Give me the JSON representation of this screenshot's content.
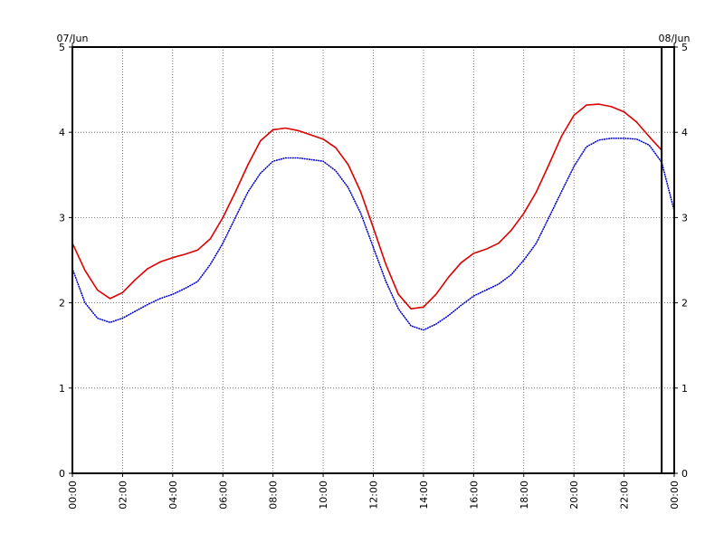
{
  "chart_data": {
    "type": "line",
    "x_unit": "time (HH:MM)",
    "xlim": [
      "00:00",
      "24:00"
    ],
    "ylim": [
      0,
      5
    ],
    "grid": true,
    "date_labels": {
      "start": "07/Jun",
      "end": "08/Jun"
    },
    "x_tick_labels": [
      "00:00",
      "02:00",
      "04:00",
      "06:00",
      "08:00",
      "10:00",
      "12:00",
      "14:00",
      "16:00",
      "18:00",
      "20:00",
      "22:00",
      "00:00"
    ],
    "y_tick_labels": [
      "0",
      "1",
      "2",
      "3",
      "4",
      "5"
    ],
    "marker_time": "23:30",
    "series": [
      {
        "color": "#dd0000",
        "style": "solid",
        "x": [
          "00:00",
          "00:30",
          "01:00",
          "01:30",
          "02:00",
          "02:30",
          "03:00",
          "03:30",
          "04:00",
          "04:30",
          "05:00",
          "05:30",
          "06:00",
          "06:30",
          "07:00",
          "07:30",
          "08:00",
          "08:30",
          "09:00",
          "09:30",
          "10:00",
          "10:30",
          "11:00",
          "11:30",
          "12:00",
          "12:30",
          "13:00",
          "13:30",
          "14:00",
          "14:30",
          "15:00",
          "15:30",
          "16:00",
          "16:30",
          "17:00",
          "17:30",
          "18:00",
          "18:30",
          "19:00",
          "19:30",
          "20:00",
          "20:30",
          "21:00",
          "21:30",
          "22:00",
          "22:30",
          "23:00",
          "23:30"
        ],
        "y": [
          2.7,
          2.38,
          2.15,
          2.05,
          2.12,
          2.27,
          2.4,
          2.48,
          2.53,
          2.57,
          2.62,
          2.75,
          3.0,
          3.3,
          3.62,
          3.9,
          4.03,
          4.05,
          4.02,
          3.97,
          3.92,
          3.82,
          3.62,
          3.3,
          2.88,
          2.45,
          2.1,
          1.93,
          1.95,
          2.1,
          2.3,
          2.47,
          2.58,
          2.63,
          2.7,
          2.85,
          3.05,
          3.3,
          3.62,
          3.95,
          4.2,
          4.32,
          4.33,
          4.3,
          4.24,
          4.12,
          3.95,
          3.79
        ]
      },
      {
        "color": "#0000cc",
        "style": "dotted",
        "x": [
          "00:00",
          "00:30",
          "01:00",
          "01:30",
          "02:00",
          "02:30",
          "03:00",
          "03:30",
          "04:00",
          "04:30",
          "05:00",
          "05:30",
          "06:00",
          "06:30",
          "07:00",
          "07:30",
          "08:00",
          "08:30",
          "09:00",
          "09:30",
          "10:00",
          "10:30",
          "11:00",
          "11:30",
          "12:00",
          "12:30",
          "13:00",
          "13:30",
          "14:00",
          "14:30",
          "15:00",
          "15:30",
          "16:00",
          "16:30",
          "17:00",
          "17:30",
          "18:00",
          "18:30",
          "19:00",
          "19:30",
          "20:00",
          "20:30",
          "21:00",
          "21:30",
          "22:00",
          "22:30",
          "23:00",
          "23:30",
          "24:00"
        ],
        "y": [
          2.4,
          2.0,
          1.82,
          1.77,
          1.82,
          1.9,
          1.98,
          2.05,
          2.1,
          2.17,
          2.25,
          2.45,
          2.7,
          3.0,
          3.3,
          3.52,
          3.66,
          3.7,
          3.7,
          3.68,
          3.66,
          3.55,
          3.35,
          3.05,
          2.65,
          2.25,
          1.93,
          1.73,
          1.68,
          1.75,
          1.85,
          1.97,
          2.08,
          2.15,
          2.22,
          2.33,
          2.5,
          2.7,
          3.0,
          3.3,
          3.6,
          3.83,
          3.91,
          3.93,
          3.93,
          3.92,
          3.85,
          3.65,
          3.08
        ]
      }
    ]
  }
}
